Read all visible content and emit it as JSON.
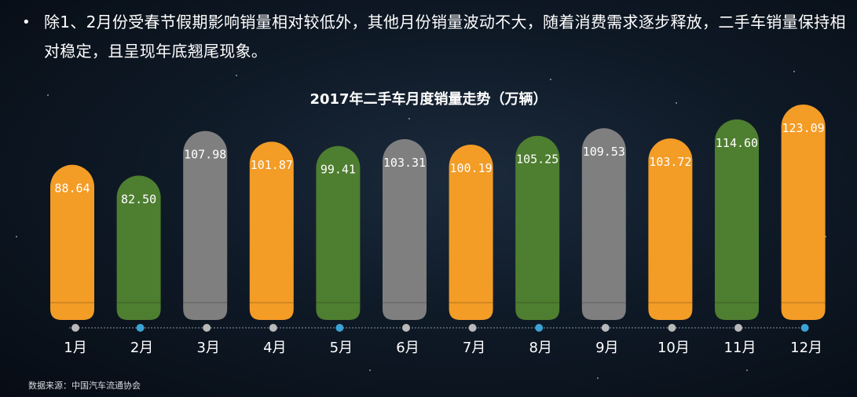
{
  "bullet": {
    "text": "除1、2月份受春节假期影响销量相对较低外，其他月份销量波动不大，随着消费需求逐步释放，二手车销量保持相对稳定，且呈现年底翘尾现象。"
  },
  "source_text": "数据来源：中国汽车流通协会",
  "colors": {
    "orange": "#f39c26",
    "green": "#4e7e30",
    "gray": "#7f7f7f",
    "dot_gray": "#b9b9b9",
    "dot_blue": "#3aa3d6"
  },
  "chart_data": {
    "type": "bar",
    "title": "2017年二手车月度销量走势（万辆）",
    "categories": [
      "1月",
      "2月",
      "3月",
      "4月",
      "5月",
      "6月",
      "7月",
      "8月",
      "9月",
      "10月",
      "11月",
      "12月"
    ],
    "values": [
      88.64,
      82.5,
      107.98,
      101.87,
      99.41,
      103.31,
      100.19,
      105.25,
      109.53,
      103.72,
      114.6,
      123.09
    ],
    "value_labels": [
      "88.64",
      "82.50",
      "107.98",
      "101.87",
      "99.41",
      "103.31",
      "100.19",
      "105.25",
      "109.53",
      "103.72",
      "114.60",
      "123.09"
    ],
    "bar_colors": [
      "orange",
      "green",
      "gray",
      "orange",
      "green",
      "gray",
      "orange",
      "green",
      "gray",
      "orange",
      "green",
      "orange"
    ],
    "dot_colors": [
      "dot_gray",
      "dot_blue",
      "dot_gray",
      "dot_gray",
      "dot_blue",
      "dot_gray",
      "dot_gray",
      "dot_blue",
      "dot_gray",
      "dot_gray",
      "dot_gray",
      "dot_blue"
    ],
    "ylim": [
      0,
      130
    ],
    "grid": false,
    "legend": "none"
  }
}
